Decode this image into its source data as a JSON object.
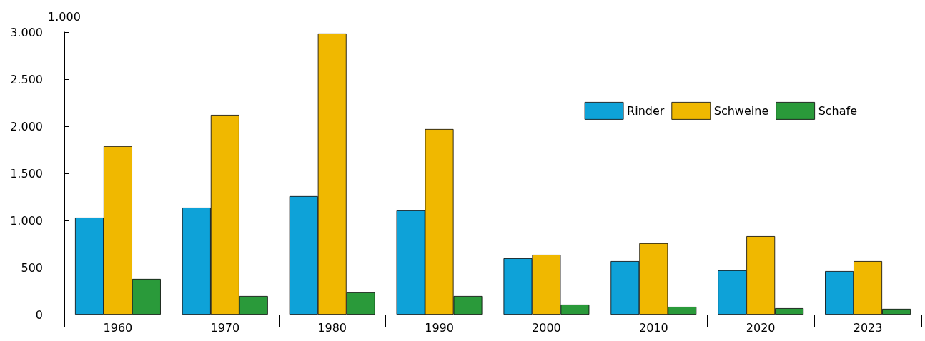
{
  "chart_data": {
    "type": "bar",
    "ylabel": "1.000",
    "categories": [
      "1960",
      "1970",
      "1980",
      "1990",
      "2000",
      "2010",
      "2020",
      "2023"
    ],
    "series": [
      {
        "name": "Rinder",
        "color": "#0ea2d8",
        "values": [
          1030,
          1136,
          1258,
          1106,
          598,
          568,
          470,
          462
        ]
      },
      {
        "name": "Schweine",
        "color": "#f0b800",
        "values": [
          1788,
          2121,
          2985,
          1970,
          636,
          758,
          833,
          568
        ]
      },
      {
        "name": "Schafe",
        "color": "#2a9a3a",
        "values": [
          379,
          197,
          235,
          197,
          106,
          83,
          68,
          61
        ]
      }
    ],
    "ylim": [
      0,
      3000
    ],
    "yticks": [
      0,
      500,
      {
        "value": 1000,
        "label": "1.000"
      },
      {
        "value": 1500,
        "label": "1.500"
      },
      {
        "value": 2000,
        "label": "2.000"
      },
      {
        "value": 2500,
        "label": "2.500"
      },
      {
        "value": 3000,
        "label": "3.000"
      }
    ],
    "grid": false,
    "legend": "top right"
  }
}
